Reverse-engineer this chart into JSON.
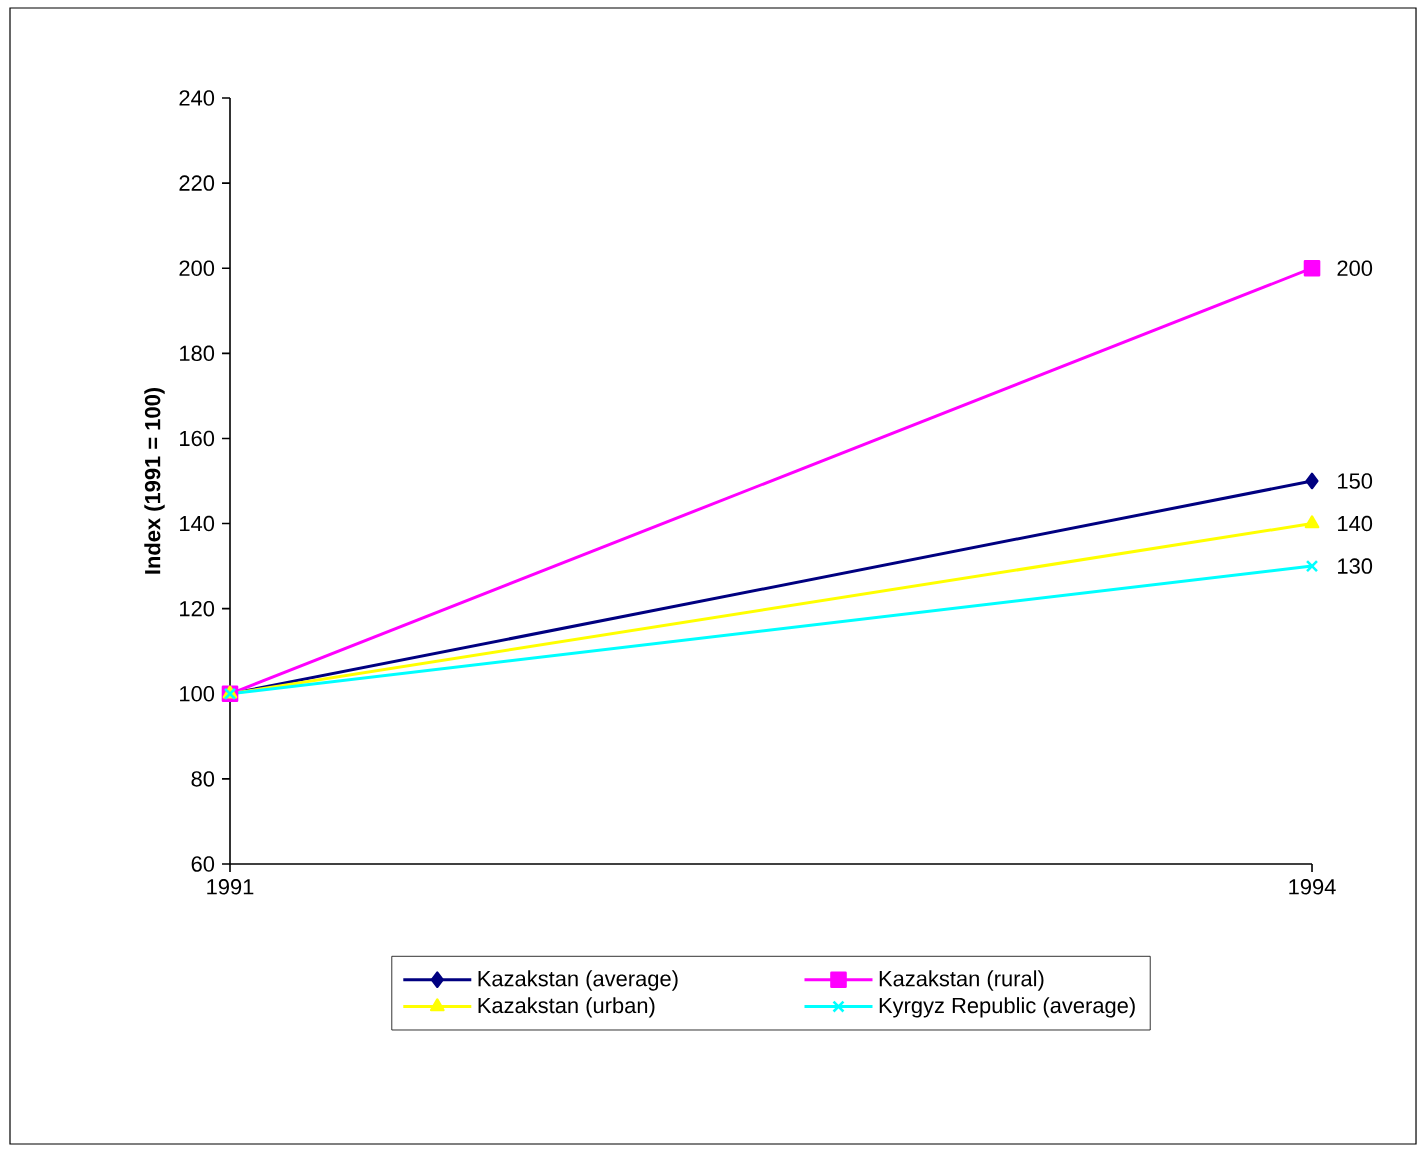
{
  "chart_data": {
    "type": "line",
    "ylabel": "Index (1991 = 100)",
    "x": [
      1991,
      1994
    ],
    "xlim": [
      1991,
      1994
    ],
    "xticks": [
      1991,
      1994
    ],
    "ylim": [
      60,
      240
    ],
    "yticks": [
      60,
      80,
      100,
      120,
      140,
      160,
      180,
      200,
      220,
      240
    ],
    "grid": false,
    "legend": "bottom",
    "series": [
      {
        "name": "Kazakstan (average)",
        "color": "#000080",
        "marker": "diamond",
        "values": [
          100,
          150
        ],
        "value_labels": [
          null,
          "150"
        ]
      },
      {
        "name": "Kazakstan (rural)",
        "color": "#ff00ff",
        "marker": "square",
        "values": [
          100,
          200
        ],
        "value_labels": [
          null,
          "200"
        ]
      },
      {
        "name": "Kazakstan (urban)",
        "color": "#ffff00",
        "marker": "triangle",
        "values": [
          100,
          140
        ],
        "value_labels": [
          null,
          "140"
        ]
      },
      {
        "name": "Kyrgyz Republic (average)",
        "color": "#00ffff",
        "marker": "cross",
        "values": [
          100,
          130
        ],
        "value_labels": [
          null,
          "130"
        ]
      }
    ]
  }
}
